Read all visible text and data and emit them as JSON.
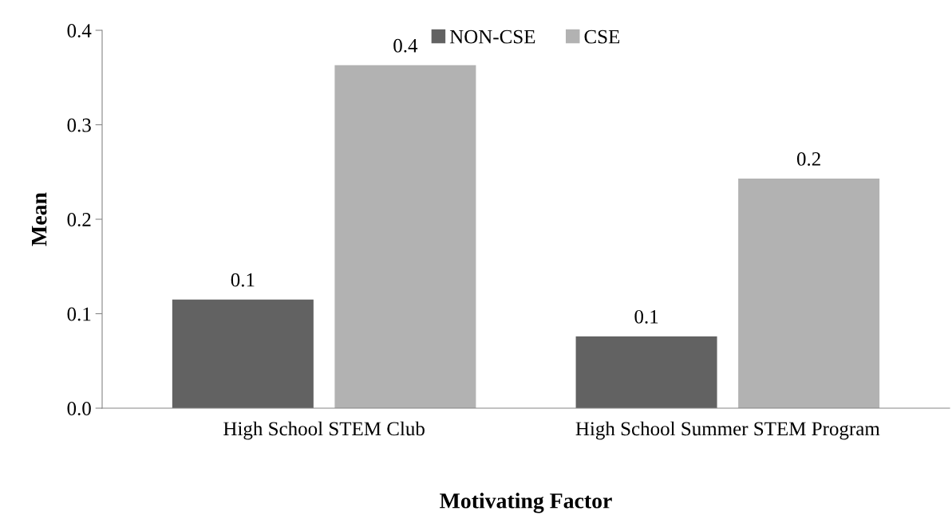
{
  "chart_data": {
    "type": "bar",
    "xlabel": "Motivating Factor",
    "ylabel": "Mean",
    "categories": [
      "High School STEM Club",
      "High School Summer STEM Program"
    ],
    "series": [
      {
        "name": "NON-CSE",
        "color": "#626262",
        "values": [
          0.115,
          0.076
        ],
        "value_labels": [
          "0.1",
          "0.1"
        ]
      },
      {
        "name": "CSE",
        "color": "#b2b2b2",
        "values": [
          0.363,
          0.243
        ],
        "value_labels": [
          "0.4",
          "0.2"
        ]
      }
    ],
    "ylim": [
      0,
      0.4
    ],
    "yticks": [
      {
        "value": 0,
        "label": "0.0"
      },
      0.1,
      0.2,
      0.3,
      0.4
    ],
    "grid": false,
    "legend": "top"
  }
}
